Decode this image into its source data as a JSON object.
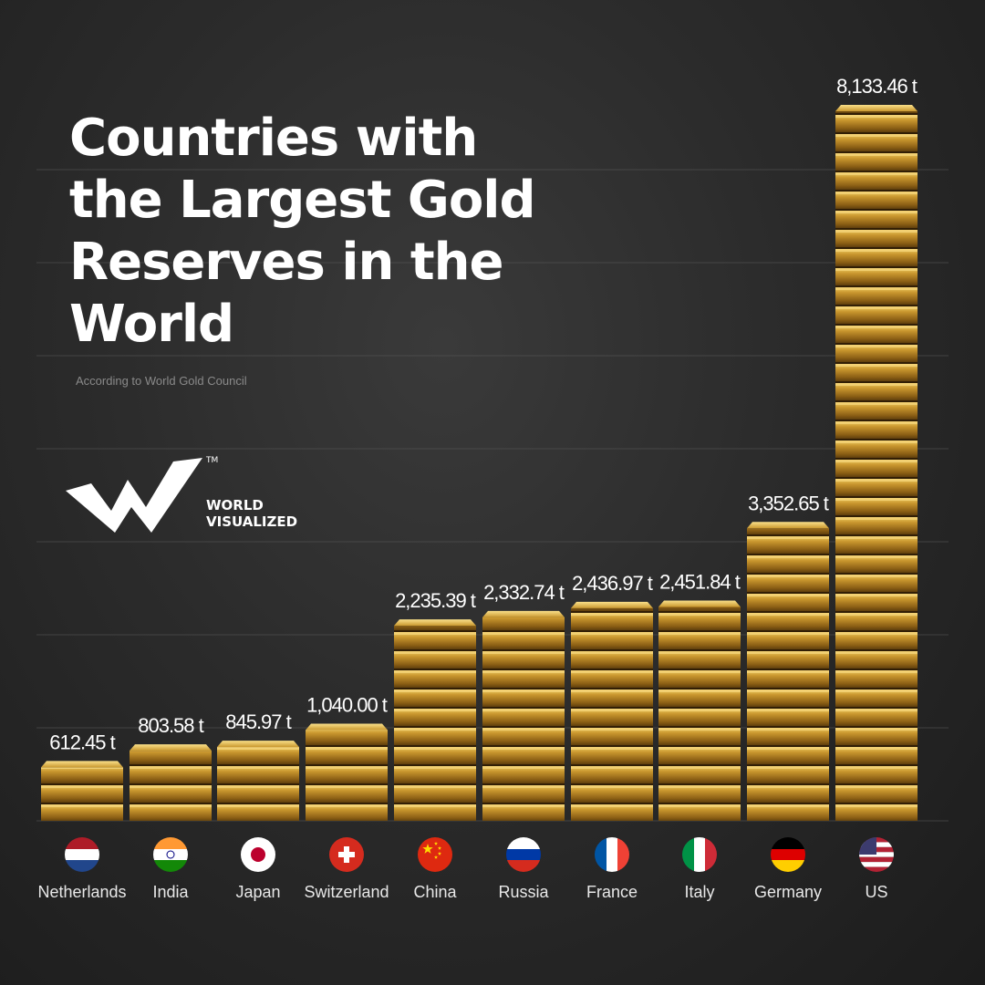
{
  "colors": {
    "gold": "#b8862a",
    "gold_light": "#e8c25a",
    "gold_dark": "#6e4a10",
    "background": "#2b2b2b",
    "gridline": "#555555"
  },
  "header": {
    "title": "Countries with the Largest Gold Reserves in the World",
    "subtitle": "According to World Gold Council"
  },
  "brand": {
    "line1": "WORLD",
    "line2": "VISUALIZED",
    "trademark": "TM"
  },
  "chart_data": {
    "type": "bar",
    "title": "Countries with the Largest Gold Reserves in the World",
    "subtitle": "According to World Gold Council",
    "unit": "t",
    "categories": [
      "Netherlands",
      "India",
      "Japan",
      "Switzerland",
      "China",
      "Russia",
      "France",
      "Italy",
      "Germany",
      "US"
    ],
    "values": [
      612.45,
      803.58,
      845.97,
      1040.0,
      2235.39,
      2332.74,
      2436.97,
      2451.84,
      3352.65,
      8133.46
    ],
    "value_labels": [
      "612.45 t",
      "803.58 t",
      "845.97 t",
      "1,040.00 t",
      "2,235.39 t",
      "2,332.74 t",
      "2,436.97 t",
      "2,451.84 t",
      "3,352.65 t",
      "8,133.46 t"
    ],
    "flags": [
      "netherlands-flag-icon",
      "india-flag-icon",
      "japan-flag-icon",
      "switzerland-flag-icon",
      "china-flag-icon",
      "russia-flag-icon",
      "france-flag-icon",
      "italy-flag-icon",
      "germany-flag-icon",
      "us-flag-icon"
    ],
    "grid": true,
    "legend": "none"
  }
}
